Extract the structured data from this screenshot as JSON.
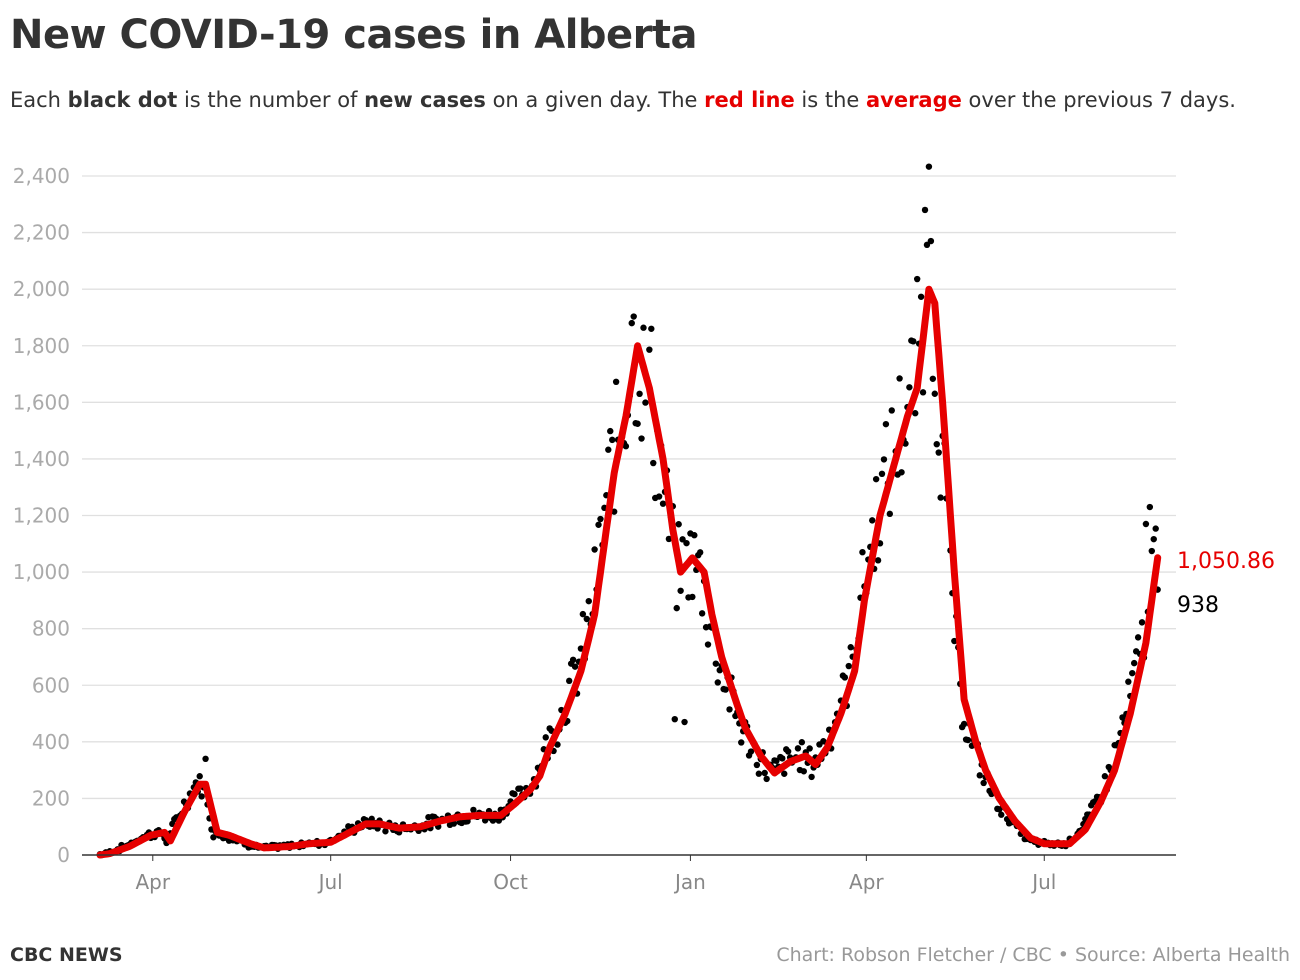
{
  "title": "New COVID-19 cases in Alberta",
  "subtitle": {
    "p1": "Each ",
    "b1": "black dot",
    "p2": " is the number of ",
    "b2": "new cases",
    "p3": " on a given day. The ",
    "r1": "red line",
    "p4": " is the ",
    "r2": "average",
    "p5": " over the previous 7 days."
  },
  "footer": {
    "brand": "CBC NEWS",
    "credit": "Chart: Robson Fletcher / CBC • Source: Alberta Health"
  },
  "colors": {
    "line": "#e60000",
    "dot": "#000000",
    "grid": "#e0e0e0",
    "axis": "#333333"
  },
  "chart_data": {
    "type": "scatter+line",
    "title": "New COVID-19 cases in Alberta",
    "x_unit": "days since 2020-03-05",
    "ylim": [
      0,
      2400
    ],
    "yticks": [
      0,
      200,
      400,
      600,
      800,
      1000,
      1200,
      1400,
      1600,
      1800,
      2000,
      2200,
      2400
    ],
    "ytick_labels": [
      "0",
      "200",
      "400",
      "600",
      "800",
      "1,000",
      "1,200",
      "1,400",
      "1,600",
      "1,800",
      "2,000",
      "2,200",
      "2,400"
    ],
    "xticks": [
      {
        "label": "Apr",
        "day": 27
      },
      {
        "label": "Jul",
        "day": 118
      },
      {
        "label": "Oct",
        "day": 210
      },
      {
        "label": "Jan",
        "day": 302
      },
      {
        "label": "Apr",
        "day": 392
      },
      {
        "label": "Jul",
        "day": 483
      }
    ],
    "xlim": [
      0,
      550
    ],
    "grid": true,
    "average_7day": {
      "day": [
        0,
        5,
        15,
        26,
        33,
        36,
        43,
        51,
        54,
        60,
        66,
        77,
        84,
        97,
        107,
        118,
        125,
        136,
        143,
        153,
        164,
        174,
        184,
        194,
        205,
        212,
        220,
        225,
        230,
        238,
        246,
        253,
        258,
        263,
        269,
        275,
        281,
        288,
        293,
        297,
        303,
        309,
        313,
        318,
        325,
        330,
        338,
        345,
        353,
        361,
        366,
        372,
        379,
        386,
        391,
        399,
        407,
        413,
        418,
        424,
        427,
        431,
        437,
        442,
        448,
        453,
        460,
        468,
        476,
        483,
        496,
        504,
        512,
        519,
        527,
        535,
        541
      ],
      "value": [
        0,
        5,
        30,
        70,
        80,
        50,
        150,
        250,
        250,
        80,
        70,
        40,
        25,
        30,
        40,
        45,
        70,
        110,
        110,
        95,
        100,
        120,
        135,
        140,
        140,
        180,
        230,
        280,
        380,
        500,
        650,
        850,
        1100,
        1350,
        1550,
        1800,
        1650,
        1400,
        1150,
        1000,
        1050,
        1000,
        850,
        700,
        550,
        450,
        350,
        290,
        330,
        350,
        320,
        380,
        500,
        650,
        900,
        1200,
        1400,
        1550,
        1650,
        2000,
        1950,
        1600,
        1000,
        550,
        400,
        300,
        200,
        120,
        60,
        40,
        40,
        90,
        190,
        300,
        500,
        750,
        1050.86
      ]
    },
    "notable_daily": [
      {
        "day": 424,
        "value": 2433
      },
      {
        "day": 422,
        "value": 2280
      },
      {
        "day": 425,
        "value": 2170
      },
      {
        "day": 272,
        "value": 1880
      },
      {
        "day": 282,
        "value": 1860
      },
      {
        "day": 294,
        "value": 480
      },
      {
        "day": 299,
        "value": 470
      },
      {
        "day": 537,
        "value": 1230
      },
      {
        "day": 535,
        "value": 1170
      },
      {
        "day": 54,
        "value": 340
      },
      {
        "day": 541,
        "value": 938
      }
    ],
    "end_labels": {
      "average": "1,050.86",
      "daily": "938"
    }
  }
}
